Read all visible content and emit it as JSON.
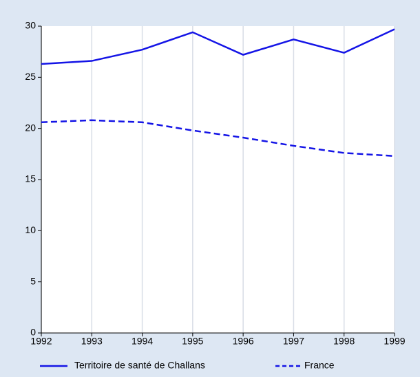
{
  "chart_data": {
    "type": "line",
    "x": [
      1992,
      1993,
      1994,
      1995,
      1996,
      1997,
      1998,
      1999
    ],
    "xlim": [
      1992,
      1999
    ],
    "xticks": [
      1992,
      1993,
      1994,
      1995,
      1996,
      1997,
      1998,
      1999
    ],
    "ylim": [
      0,
      30
    ],
    "yticks": [
      0,
      5,
      10,
      15,
      20,
      25,
      30
    ],
    "grid": "x",
    "legend": "bottom",
    "series": [
      {
        "name": "Territoire de santé de Challans",
        "color": "#1414e6",
        "dash": false,
        "values": [
          26.3,
          26.6,
          27.7,
          29.4,
          27.2,
          28.7,
          27.4,
          29.7
        ]
      },
      {
        "name": "France",
        "color": "#1414e6",
        "dash": true,
        "values": [
          20.6,
          20.8,
          20.6,
          19.8,
          19.1,
          18.3,
          17.6,
          17.3
        ]
      }
    ]
  }
}
